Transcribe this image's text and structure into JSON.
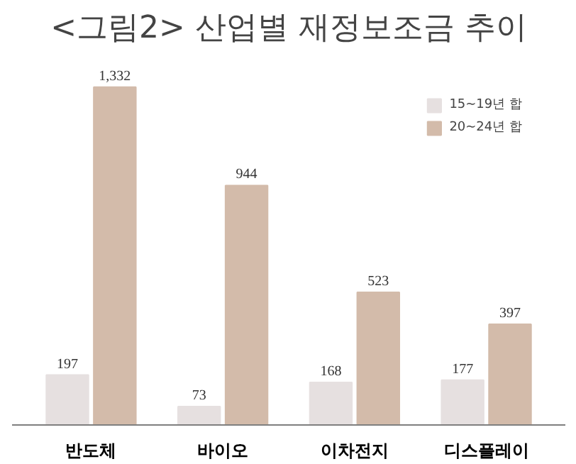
{
  "chart_data": {
    "type": "bar",
    "title": "<그림2> 산업별 재정보조금 추이",
    "categories": [
      "반도체",
      "바이오",
      "이차전지",
      "디스플레이"
    ],
    "series": [
      {
        "name": "15~19년 합",
        "color": "#e6e0e0",
        "values": [
          197,
          73,
          168,
          177
        ],
        "value_labels": [
          "197",
          "73",
          "168",
          "177"
        ]
      },
      {
        "name": "20~24년 합",
        "color": "#d3bbaa",
        "values": [
          1332,
          944,
          523,
          397
        ],
        "value_labels": [
          "1,332",
          "944",
          "523",
          "397"
        ]
      }
    ],
    "grid": false,
    "legend": "top right"
  }
}
